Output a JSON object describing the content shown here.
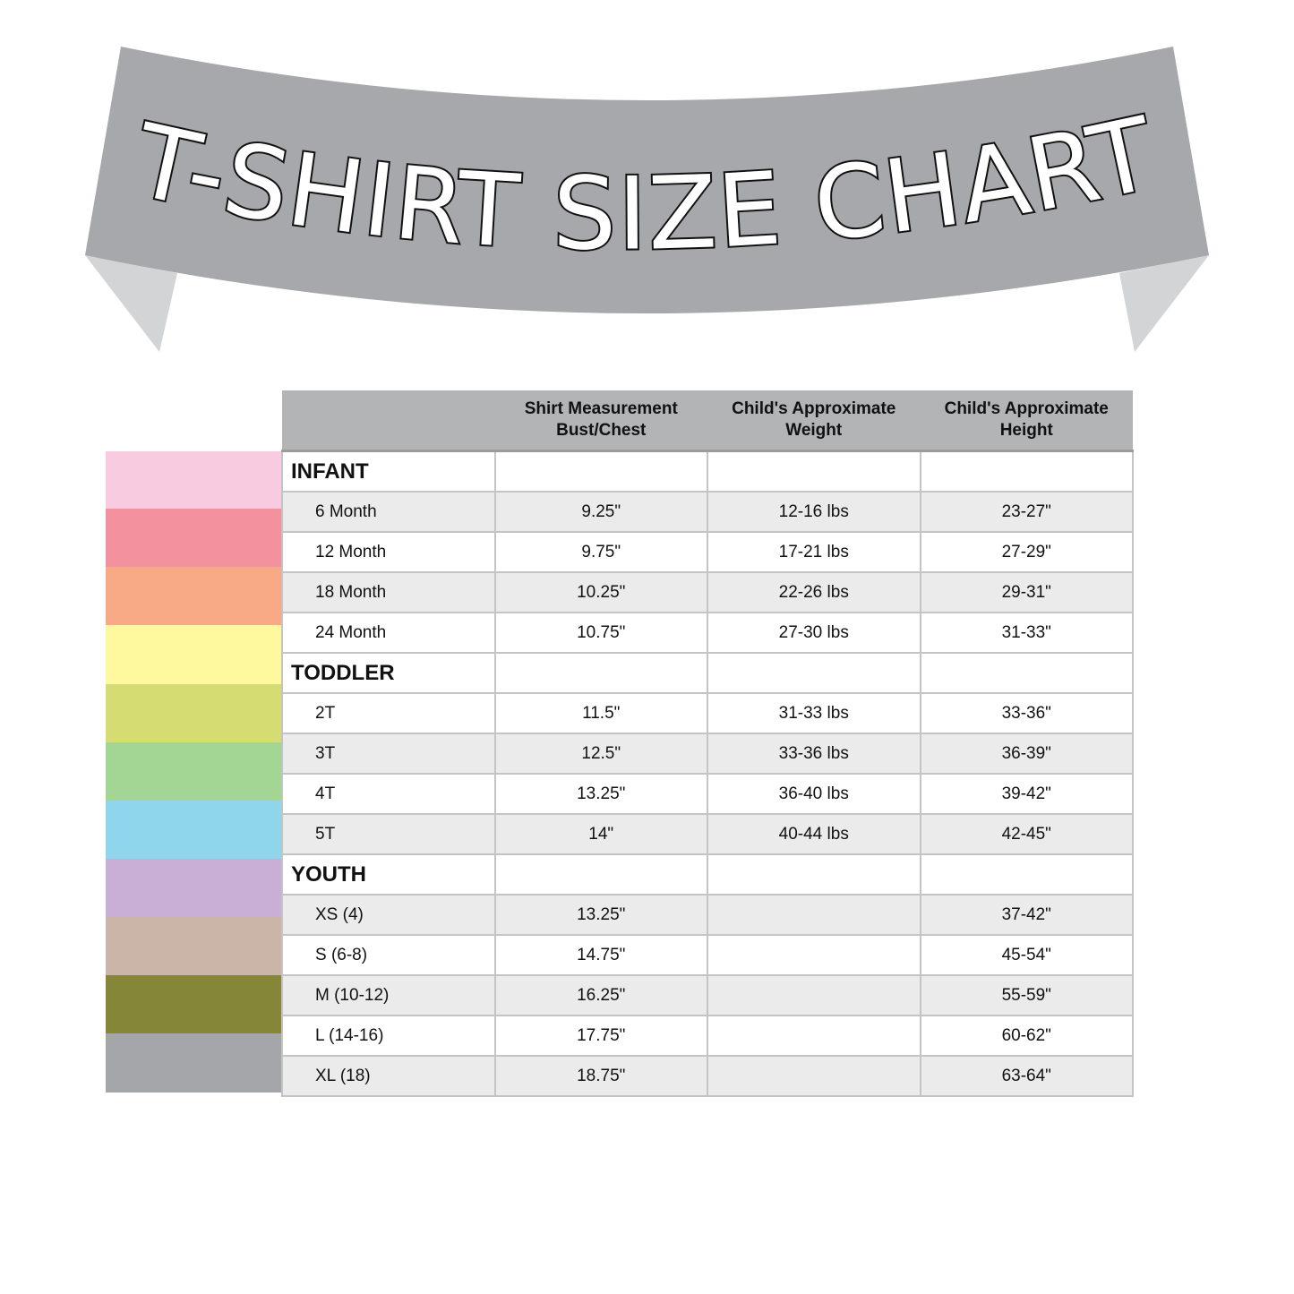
{
  "title": "T-SHIRT SIZE CHART",
  "colors": {
    "banner": "#a7a8ab",
    "banner_tail": "#d3d4d6",
    "header_bg": "#b3b4b6",
    "shaded_row": "#ebebeb",
    "swatches": [
      "#f8cbe0",
      "#f4919e",
      "#f8aa86",
      "#fef89f",
      "#d4dc72",
      "#a3d595",
      "#8fd6ec",
      "#c9afd6",
      "#cab5a8",
      "#858637",
      "#a5a6aa"
    ]
  },
  "table": {
    "headers": [
      "",
      "Shirt Measurement\nBust/Chest",
      "Child's Approximate\nWeight",
      "Child's Approximate\nHeight"
    ],
    "rows": [
      {
        "type": "group",
        "cells": [
          "INFANT",
          "",
          "",
          ""
        ]
      },
      {
        "type": "shade",
        "cells": [
          "6 Month",
          "9.25\"",
          "12-16 lbs",
          "23-27\""
        ]
      },
      {
        "type": "plain",
        "cells": [
          "12 Month",
          "9.75\"",
          "17-21 lbs",
          "27-29\""
        ]
      },
      {
        "type": "shade",
        "cells": [
          "18 Month",
          "10.25\"",
          "22-26 lbs",
          "29-31\""
        ]
      },
      {
        "type": "plain",
        "cells": [
          "24 Month",
          "10.75\"",
          "27-30 lbs",
          "31-33\""
        ]
      },
      {
        "type": "group",
        "cells": [
          "TODDLER",
          "",
          "",
          ""
        ]
      },
      {
        "type": "plain",
        "cells": [
          "2T",
          "11.5\"",
          "31-33 lbs",
          "33-36\""
        ]
      },
      {
        "type": "shade",
        "cells": [
          "3T",
          "12.5\"",
          "33-36 lbs",
          "36-39\""
        ]
      },
      {
        "type": "plain",
        "cells": [
          "4T",
          "13.25\"",
          "36-40 lbs",
          "39-42\""
        ]
      },
      {
        "type": "shade",
        "cells": [
          "5T",
          "14\"",
          "40-44 lbs",
          "42-45\""
        ]
      },
      {
        "type": "group",
        "cells": [
          "YOUTH",
          "",
          "",
          ""
        ]
      },
      {
        "type": "shade",
        "cells": [
          "XS  (4)",
          "13.25\"",
          "",
          "37-42\""
        ]
      },
      {
        "type": "plain",
        "cells": [
          "S (6-8)",
          "14.75\"",
          "",
          "45-54\""
        ]
      },
      {
        "type": "shade",
        "cells": [
          "M (10-12)",
          "16.25\"",
          "",
          "55-59\""
        ]
      },
      {
        "type": "plain",
        "cells": [
          "L (14-16)",
          "17.75\"",
          "",
          "60-62\""
        ]
      },
      {
        "type": "shade",
        "cells": [
          "XL (18)",
          "18.75\"",
          "",
          "63-64\""
        ]
      }
    ]
  }
}
